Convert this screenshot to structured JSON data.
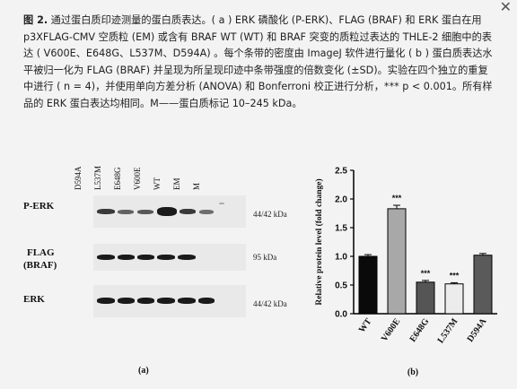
{
  "close_label": "✕",
  "caption": {
    "figure_label": "图 2.",
    "text": " 通过蛋白质印迹测量的蛋白质表达。( a ) ERK 磷酸化 (P-ERK)、FLAG (BRAF) 和 ERK 蛋白在用 p3XFLAG-CMV 空质粒 (EM) 或含有 BRAF WT (WT) 和 BRAF 突变的质粒过表达的 THLE-2 细胞中的表达 ( V600E、E648G、L537M、D594A) 。每个条带的密度由 ImageJ 软件进行量化 ( b ) 蛋白质表达水平被归一化为 FLAG (BRAF) 并呈现为所呈现印迹中条带强度的倍数变化 (±SD)。实验在四个独立的重复中进行 ( n = 4)，并使用单向方差分析 (ANOVA) 和 Bonferroni 校正进行分析，*** p < 0.001。所有样品的 ERK 蛋白表达均相同。M——蛋白质标记 10–245 kDa。"
  },
  "blot": {
    "lanes": [
      "D594A",
      "L537M",
      "E648G",
      "V600E",
      "WT",
      "EM",
      "M"
    ],
    "rows": [
      {
        "label": "P-ERK",
        "kda": "44/42 kDa"
      },
      {
        "label_line1": "FLAG",
        "label_line2": "(BRAF)",
        "kda": "95 kDa"
      },
      {
        "label": "ERK",
        "kda": "44/42 kDa"
      }
    ],
    "panel_label": "(a)"
  },
  "chart_data": {
    "type": "bar",
    "categories": [
      "WT",
      "V600E",
      "E648G",
      "L537M",
      "D594A"
    ],
    "values": [
      1.0,
      1.83,
      0.55,
      0.52,
      1.02
    ],
    "errors": [
      0.03,
      0.06,
      0.03,
      0.02,
      0.03
    ],
    "colors": [
      "#0a0a0a",
      "#a8a8a8",
      "#555555",
      "#ececec",
      "#5a5a5a"
    ],
    "significance": [
      "",
      "***",
      "***",
      "***",
      ""
    ],
    "ylabel": "Relative protein level (fold change)",
    "ylim": [
      0,
      2.5
    ],
    "yticks": [
      "0.0",
      "0.5",
      "1.0",
      "1.5",
      "2.0",
      "2.5"
    ],
    "panel_label": "(b)"
  }
}
